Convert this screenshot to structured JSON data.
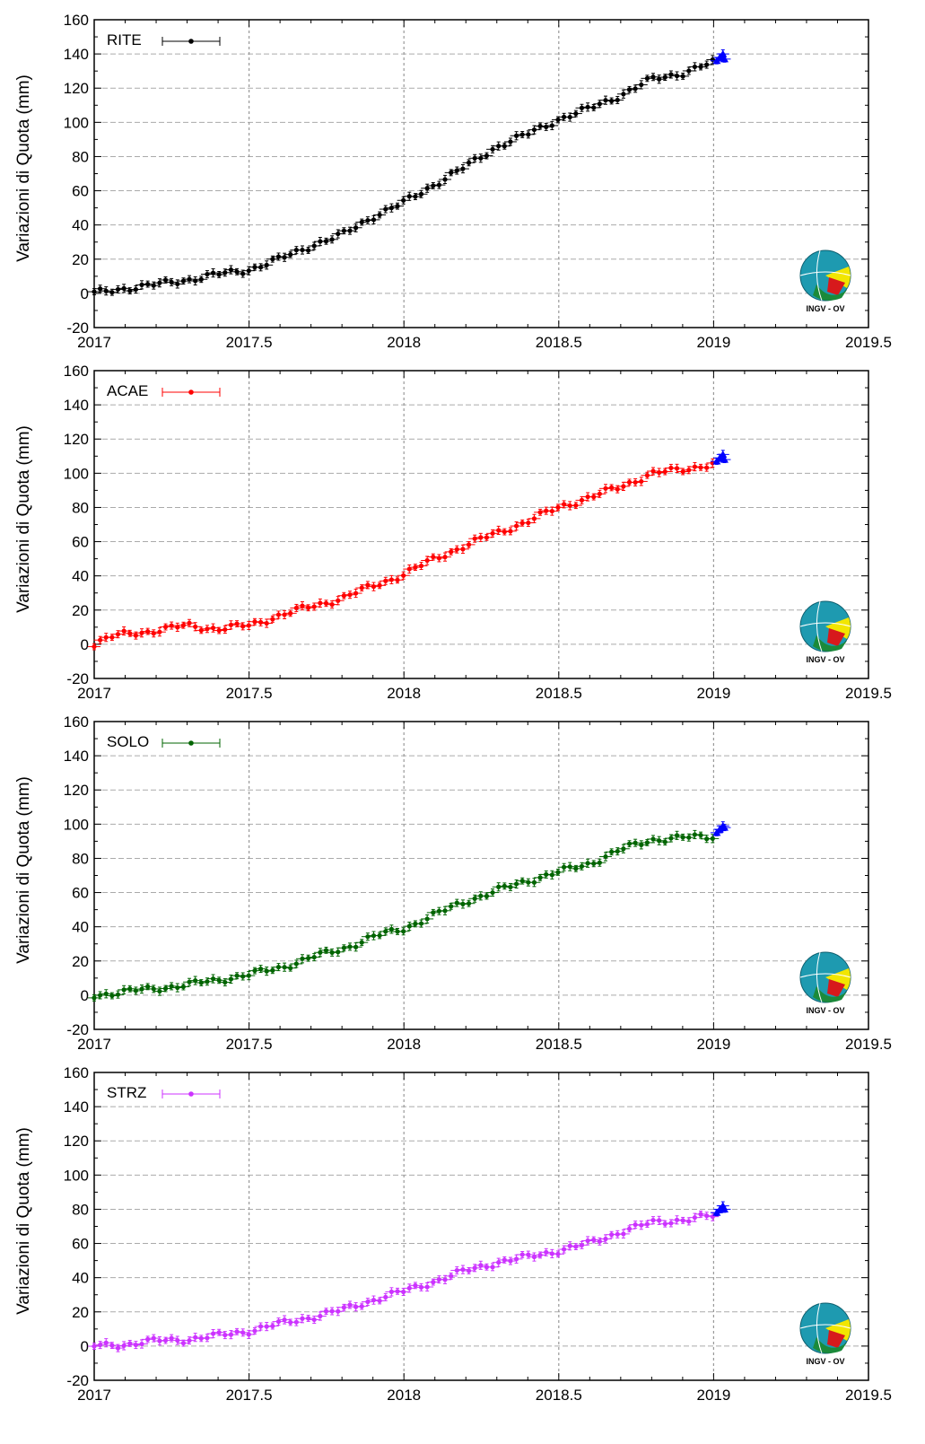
{
  "chart_data": [
    {
      "type": "scatter",
      "station": "RITE",
      "ylabel": "Variazioni di Quota (mm)",
      "xlim": [
        2017,
        2019.5
      ],
      "ylim": [
        -20,
        160
      ],
      "xticks": [
        "2017",
        "2017.5",
        "2018",
        "2018.5",
        "2019",
        "2019.5"
      ],
      "yticks": [
        "-20",
        "0",
        "20",
        "40",
        "60",
        "80",
        "100",
        "120",
        "140",
        "160"
      ],
      "grid": true,
      "legend_position": "top-left",
      "series": [
        {
          "name": "RITE",
          "color": "#000000",
          "anchors": [
            [
              2017.0,
              0
            ],
            [
              2017.1,
              3
            ],
            [
              2017.2,
              5
            ],
            [
              2017.3,
              8
            ],
            [
              2017.4,
              11
            ],
            [
              2017.5,
              14
            ],
            [
              2017.6,
              20
            ],
            [
              2017.7,
              28
            ],
            [
              2017.8,
              34
            ],
            [
              2017.9,
              45
            ],
            [
              2018.0,
              53
            ],
            [
              2018.1,
              64
            ],
            [
              2018.2,
              74
            ],
            [
              2018.3,
              86
            ],
            [
              2018.4,
              93
            ],
            [
              2018.5,
              102
            ],
            [
              2018.6,
              108
            ],
            [
              2018.7,
              116
            ],
            [
              2018.8,
              125
            ],
            [
              2018.9,
              129
            ],
            [
              2019.0,
              135
            ]
          ]
        },
        {
          "name": "",
          "color": "#0000ff",
          "points": [
            [
              2019.01,
              136
            ],
            [
              2019.02,
              138
            ],
            [
              2019.03,
              140
            ],
            [
              2019.035,
              137
            ]
          ]
        }
      ]
    },
    {
      "type": "scatter",
      "station": "ACAE",
      "ylabel": "Variazioni di Quota (mm)",
      "xlim": [
        2017,
        2019.5
      ],
      "ylim": [
        -20,
        160
      ],
      "xticks": [
        "2017",
        "2017.5",
        "2018",
        "2018.5",
        "2019",
        "2019.5"
      ],
      "yticks": [
        "-20",
        "0",
        "20",
        "40",
        "60",
        "80",
        "100",
        "120",
        "140",
        "160"
      ],
      "grid": true,
      "legend_position": "top-left",
      "series": [
        {
          "name": "ACAE",
          "color": "#ff0000",
          "anchors": [
            [
              2017.0,
              0
            ],
            [
              2017.05,
              4
            ],
            [
              2017.1,
              6
            ],
            [
              2017.2,
              8
            ],
            [
              2017.3,
              11
            ],
            [
              2017.4,
              9
            ],
            [
              2017.5,
              11
            ],
            [
              2017.6,
              17
            ],
            [
              2017.7,
              22
            ],
            [
              2017.8,
              27
            ],
            [
              2017.9,
              34
            ],
            [
              2018.0,
              41
            ],
            [
              2018.1,
              50
            ],
            [
              2018.2,
              58
            ],
            [
              2018.3,
              65
            ],
            [
              2018.4,
              72
            ],
            [
              2018.5,
              80
            ],
            [
              2018.6,
              86
            ],
            [
              2018.7,
              92
            ],
            [
              2018.8,
              100
            ],
            [
              2018.9,
              102
            ],
            [
              2019.0,
              106
            ]
          ]
        },
        {
          "name": "",
          "color": "#0000ff",
          "points": [
            [
              2019.01,
              107
            ],
            [
              2019.02,
              109
            ],
            [
              2019.03,
              111
            ],
            [
              2019.035,
              108
            ]
          ]
        }
      ]
    },
    {
      "type": "scatter",
      "station": "SOLO",
      "ylabel": "Variazioni di Quota (mm)",
      "xlim": [
        2017,
        2019.5
      ],
      "ylim": [
        -20,
        160
      ],
      "xticks": [
        "2017",
        "2017.5",
        "2018",
        "2018.5",
        "2019",
        "2019.5"
      ],
      "yticks": [
        "-20",
        "0",
        "20",
        "40",
        "60",
        "80",
        "100",
        "120",
        "140",
        "160"
      ],
      "grid": true,
      "legend_position": "top-left",
      "series": [
        {
          "name": "SOLO",
          "color": "#006400",
          "anchors": [
            [
              2017.0,
              0
            ],
            [
              2017.1,
              2
            ],
            [
              2017.2,
              4
            ],
            [
              2017.3,
              6
            ],
            [
              2017.4,
              9
            ],
            [
              2017.5,
              12
            ],
            [
              2017.6,
              16
            ],
            [
              2017.7,
              22
            ],
            [
              2017.8,
              27
            ],
            [
              2017.9,
              34
            ],
            [
              2018.0,
              39
            ],
            [
              2018.1,
              47
            ],
            [
              2018.2,
              55
            ],
            [
              2018.3,
              61
            ],
            [
              2018.4,
              67
            ],
            [
              2018.5,
              72
            ],
            [
              2018.6,
              77
            ],
            [
              2018.7,
              85
            ],
            [
              2018.8,
              91
            ],
            [
              2018.9,
              92
            ],
            [
              2019.0,
              93
            ]
          ]
        },
        {
          "name": "",
          "color": "#0000ff",
          "points": [
            [
              2019.01,
              95
            ],
            [
              2019.02,
              97
            ],
            [
              2019.03,
              99
            ],
            [
              2019.035,
              98
            ]
          ]
        }
      ]
    },
    {
      "type": "scatter",
      "station": "STRZ",
      "ylabel": "Variazioni di Quota (mm)",
      "xlim": [
        2017,
        2019.5
      ],
      "ylim": [
        -20,
        160
      ],
      "xticks": [
        "2017",
        "2017.5",
        "2018",
        "2018.5",
        "2019",
        "2019.5"
      ],
      "yticks": [
        "-20",
        "0",
        "20",
        "40",
        "60",
        "80",
        "100",
        "120",
        "140",
        "160"
      ],
      "grid": true,
      "legend_position": "top-left",
      "series": [
        {
          "name": "STRZ",
          "color": "#cc33ff",
          "anchors": [
            [
              2017.0,
              0
            ],
            [
              2017.1,
              1
            ],
            [
              2017.2,
              3
            ],
            [
              2017.3,
              4
            ],
            [
              2017.4,
              6
            ],
            [
              2017.5,
              9
            ],
            [
              2017.6,
              13
            ],
            [
              2017.7,
              17
            ],
            [
              2017.8,
              21
            ],
            [
              2017.9,
              27
            ],
            [
              2018.0,
              32
            ],
            [
              2018.1,
              38
            ],
            [
              2018.2,
              44
            ],
            [
              2018.3,
              49
            ],
            [
              2018.4,
              52
            ],
            [
              2018.5,
              56
            ],
            [
              2018.6,
              60
            ],
            [
              2018.7,
              67
            ],
            [
              2018.8,
              72
            ],
            [
              2018.9,
              74
            ],
            [
              2019.0,
              76
            ]
          ]
        },
        {
          "name": "",
          "color": "#0000ff",
          "points": [
            [
              2019.01,
              78
            ],
            [
              2019.02,
              80
            ],
            [
              2019.03,
              82
            ],
            [
              2019.035,
              80
            ]
          ]
        }
      ]
    }
  ],
  "logo": {
    "text": "INGV - OV"
  }
}
